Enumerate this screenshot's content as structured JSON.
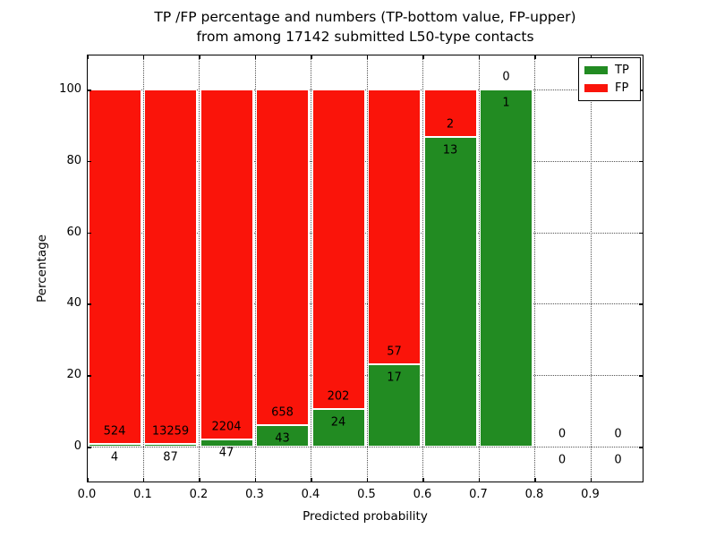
{
  "title": {
    "line1": "TP /FP percentage and numbers (TP-bottom value, FP-upper)",
    "line2": "from among 17142 submitted L50-type contacts"
  },
  "legend": {
    "tp_label": "TP",
    "fp_label": "FP"
  },
  "chart_data": {
    "type": "bar",
    "stacked": true,
    "title": "TP /FP percentage and numbers (TP-bottom value, FP-upper) from among 17142 submitted L50-type contacts",
    "xlabel": "Predicted probability",
    "ylabel": "Percentage",
    "x_tick_labels": [
      "0.0",
      "0.1",
      "0.2",
      "0.3",
      "0.4",
      "0.5",
      "0.6",
      "0.7",
      "0.8",
      "0.9"
    ],
    "y_tick_values": [
      0,
      20,
      40,
      60,
      80,
      100
    ],
    "xlim": [
      0.0,
      1.0
    ],
    "ylim": [
      -10,
      110
    ],
    "bin_left_edges": [
      0.0,
      0.1,
      0.2,
      0.3,
      0.4,
      0.5,
      0.6,
      0.7,
      0.8,
      0.9
    ],
    "bin_width": 0.1,
    "total_submitted": 17142,
    "series": [
      {
        "name": "TP",
        "color": "#228b22",
        "counts": [
          4,
          87,
          47,
          43,
          24,
          17,
          13,
          1,
          0,
          0
        ]
      },
      {
        "name": "FP",
        "color": "#fa140a",
        "counts": [
          524,
          13259,
          2204,
          658,
          202,
          57,
          2,
          0,
          0,
          0
        ]
      }
    ],
    "bar_height_rule": "green TP segment = tp/(tp+fp)*100 percent, red FP fills up to 100 percent",
    "label_rule": "FP count printed above green-bar top, TP count printed below it",
    "grid": "dotted",
    "legend_position": "upper right"
  }
}
